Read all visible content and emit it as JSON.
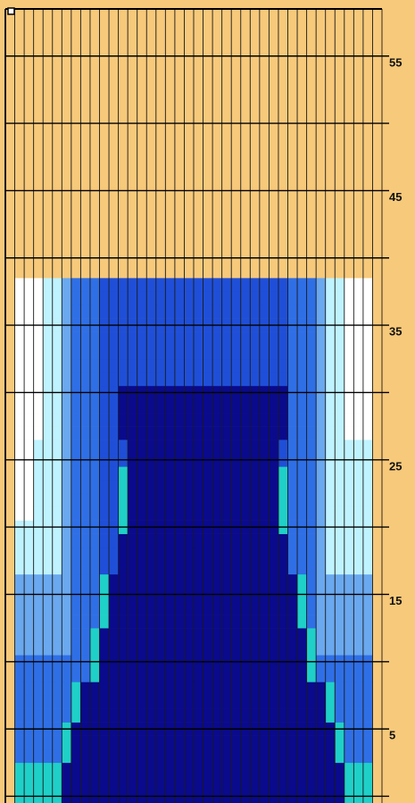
{
  "scale": {
    "labels": [
      "5",
      "15",
      "25",
      "35",
      "45",
      "55"
    ],
    "label_values": [
      5,
      15,
      25,
      35,
      45,
      55
    ]
  },
  "grid": {
    "columns": 40,
    "rows": 59,
    "major_line_every_rows": 5,
    "background_color": "#f7c97a",
    "minor_line_color": "#1a1a1a",
    "major_line_color": "#000000"
  },
  "palette": {
    "empty": "#f7c97a",
    "level_white": "#ffffff",
    "level_light_cyan": "#bff3ff",
    "level_sky": "#6aa8ef",
    "level_blue": "#2f6fe6",
    "level_mid_blue": "#1f4fd8",
    "level_dark_blue": "#0a0a8c",
    "level_cyan": "#1fd0c8"
  },
  "filled_height_rows": 39,
  "core_profile": {
    "description_free": true,
    "rows_from_bottom": [
      {
        "row_from": 1,
        "row_to": 3,
        "dark_from_col": 6,
        "dark_to_col": 35,
        "cyan_edge": true
      },
      {
        "row_from": 4,
        "row_to": 6,
        "dark_from_col": 7,
        "dark_to_col": 34,
        "cyan_edge": true
      },
      {
        "row_from": 7,
        "row_to": 9,
        "dark_from_col": 8,
        "dark_to_col": 33,
        "cyan_edge": true
      },
      {
        "row_from": 10,
        "row_to": 13,
        "dark_from_col": 10,
        "dark_to_col": 31,
        "cyan_edge": true
      },
      {
        "row_from": 14,
        "row_to": 17,
        "dark_from_col": 11,
        "dark_to_col": 30,
        "cyan_edge": true
      },
      {
        "row_from": 18,
        "row_to": 20,
        "dark_from_col": 12,
        "dark_to_col": 29,
        "cyan_edge": false
      },
      {
        "row_from": 21,
        "row_to": 25,
        "dark_from_col": 13,
        "dark_to_col": 28,
        "cyan_edge": true
      },
      {
        "row_from": 26,
        "row_to": 27,
        "dark_from_col": 13,
        "dark_to_col": 28,
        "cyan_edge": false
      },
      {
        "row_from": 28,
        "row_to": 31,
        "dark_from_col": 12,
        "dark_to_col": 29,
        "cyan_edge": false
      }
    ]
  }
}
